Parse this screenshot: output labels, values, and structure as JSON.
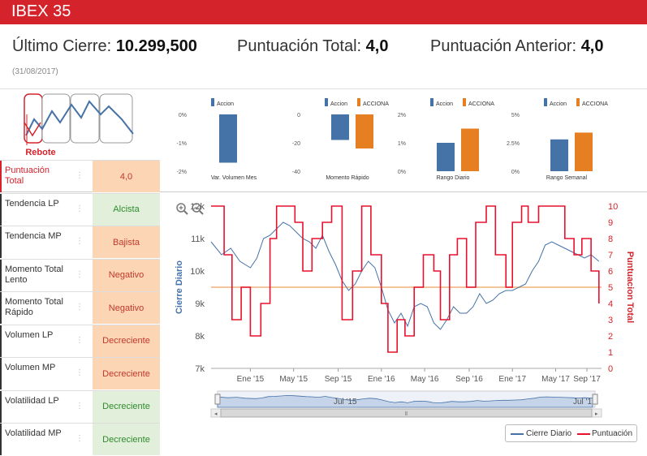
{
  "header": {
    "title": "IBEX 35"
  },
  "summary": {
    "last_close_label": "Último Cierre:",
    "last_close_value": "10.299,500",
    "total_score_label": "Puntuación Total:",
    "total_score_value": "4,0",
    "prev_score_label": "Puntuación Anterior:",
    "prev_score_value": "4,0",
    "date": "(31/08/2017)"
  },
  "pattern": {
    "label": "Rebote"
  },
  "mini_charts": [
    {
      "legend": [
        "Accion"
      ],
      "ticks": [
        "0%",
        "-1%",
        "-2%"
      ],
      "caption": "Var. Volumen Mes"
    },
    {
      "legend": [
        "Accion",
        "ACCIONA"
      ],
      "ticks": [
        "0",
        "-20",
        "-40"
      ],
      "caption": "Momento Rápido"
    },
    {
      "legend": [
        "Accion",
        "ACCIONA"
      ],
      "ticks": [
        "2%",
        "1%",
        "0%"
      ],
      "caption": "Rango Diario"
    },
    {
      "legend": [
        "Accion",
        "ACCIONA"
      ],
      "ticks": [
        "5%",
        "2.5%",
        "0%"
      ],
      "caption": "Rango Semanal"
    }
  ],
  "metrics": [
    {
      "label": "Puntuación Total",
      "value": "4,0",
      "bg": "#fcd5b5",
      "fg": "#c0392b",
      "label_color": "#d5232b",
      "border": "#d5232b"
    },
    {
      "label": "Tendencia LP",
      "value": "Alcista",
      "bg": "#e2efda",
      "fg": "#2e8b2e",
      "label_color": "#333333",
      "border": "#333333"
    },
    {
      "label": "Tendencia MP",
      "value": "Bajista",
      "bg": "#fcd5b5",
      "fg": "#c0392b",
      "label_color": "#333333",
      "border": "#333333"
    },
    {
      "label": "Momento Total Lento",
      "value": "Negativo",
      "bg": "#fcd5b5",
      "fg": "#c0392b",
      "label_color": "#333333",
      "border": "#333333"
    },
    {
      "label": "Momento Total Rápido",
      "value": "Negativo",
      "bg": "#fcd5b5",
      "fg": "#c0392b",
      "label_color": "#333333",
      "border": "#333333"
    },
    {
      "label": "Volumen LP",
      "value": "Decreciente",
      "bg": "#fcd5b5",
      "fg": "#c0392b",
      "label_color": "#333333",
      "border": "#333333"
    },
    {
      "label": "Volumen MP",
      "value": "Decreciente",
      "bg": "#fcd5b5",
      "fg": "#c0392b",
      "label_color": "#333333",
      "border": "#333333"
    },
    {
      "label": "Volatilidad LP",
      "value": "Decreciente",
      "bg": "#e2efda",
      "fg": "#2e8b2e",
      "label_color": "#333333",
      "border": "#333333"
    },
    {
      "label": "Volatilidad MP",
      "value": "Decreciente",
      "bg": "#e2efda",
      "fg": "#2e8b2e",
      "label_color": "#333333",
      "border": "#333333"
    }
  ],
  "chart_data": [
    {
      "type": "bar",
      "title": "Var. Volumen Mes",
      "categories": [
        "Var. Volumen Mes"
      ],
      "series": [
        {
          "name": "Accion",
          "values": [
            -1.7
          ]
        }
      ],
      "ylim": [
        -2,
        0
      ],
      "ytick_labels": [
        "0%",
        "-1%",
        "-2%"
      ]
    },
    {
      "type": "bar",
      "title": "Momento Rápido",
      "categories": [
        "Momento Rápido"
      ],
      "series": [
        {
          "name": "Accion",
          "values": [
            -18
          ]
        },
        {
          "name": "ACCIONA",
          "values": [
            -24
          ]
        }
      ],
      "ylim": [
        -40,
        0
      ],
      "ytick_labels": [
        "0",
        "-20",
        "-40"
      ]
    },
    {
      "type": "bar",
      "title": "Rango Diario",
      "categories": [
        "Rango Diario"
      ],
      "series": [
        {
          "name": "Accion",
          "values": [
            1.0
          ]
        },
        {
          "name": "ACCIONA",
          "values": [
            1.5
          ]
        }
      ],
      "ylim": [
        0,
        2
      ],
      "ytick_labels": [
        "2%",
        "1%",
        "0%"
      ]
    },
    {
      "type": "bar",
      "title": "Rango Semanal",
      "categories": [
        "Rango Semanal"
      ],
      "series": [
        {
          "name": "Accion",
          "values": [
            2.8
          ]
        },
        {
          "name": "ACCIONA",
          "values": [
            3.4
          ]
        }
      ],
      "ylim": [
        0,
        5
      ],
      "ytick_labels": [
        "5%",
        "2.5%",
        "0%"
      ]
    },
    {
      "type": "line",
      "title": "IBEX 35",
      "xlabel": "",
      "ylabel": "Cierre Diario",
      "ylabel_right": "Puntuacion Total",
      "x_ticks": [
        "Ene '15",
        "May '15",
        "Sep '15",
        "Ene '16",
        "May '16",
        "Sep '16",
        "Ene '17",
        "May '17",
        "Sep '17"
      ],
      "y_ticks_left": [
        "12k",
        "11k",
        "10k",
        "9k",
        "8k",
        "7k"
      ],
      "y_ticks_right": [
        "10",
        "9",
        "8",
        "7",
        "6",
        "5",
        "4",
        "3",
        "2",
        "1",
        "0"
      ],
      "ylim_left": [
        7000,
        12000
      ],
      "ylim_right": [
        0,
        10
      ],
      "reference_line": 5,
      "navigator_labels": [
        "Jul '15",
        "Jul '16"
      ],
      "series": [
        {
          "name": "Cierre Diario",
          "axis": "left",
          "x": [
            2014.7,
            2014.78,
            2014.85,
            2014.92,
            2015.0,
            2015.05,
            2015.1,
            2015.15,
            2015.2,
            2015.25,
            2015.3,
            2015.35,
            2015.4,
            2015.45,
            2015.5,
            2015.55,
            2015.6,
            2015.65,
            2015.7,
            2015.75,
            2015.8,
            2015.85,
            2015.9,
            2015.95,
            2016.0,
            2016.05,
            2016.1,
            2016.15,
            2016.2,
            2016.25,
            2016.3,
            2016.35,
            2016.4,
            2016.45,
            2016.5,
            2016.55,
            2016.6,
            2016.65,
            2016.7,
            2016.75,
            2016.8,
            2016.85,
            2016.9,
            2016.95,
            2017.0,
            2017.05,
            2017.1,
            2017.15,
            2017.2,
            2017.25,
            2017.3,
            2017.35,
            2017.4,
            2017.45,
            2017.5,
            2017.55,
            2017.6,
            2017.66
          ],
          "values": [
            10900,
            10500,
            10700,
            10300,
            10100,
            10400,
            11000,
            11100,
            11300,
            11500,
            11400,
            11200,
            11000,
            10900,
            10700,
            11100,
            10600,
            10200,
            9700,
            9400,
            9600,
            10000,
            10300,
            10100,
            9500,
            8800,
            8400,
            8700,
            8300,
            8900,
            9000,
            8900,
            8400,
            8200,
            8500,
            8900,
            8700,
            8700,
            8900,
            9300,
            9000,
            9100,
            9300,
            9400,
            9400,
            9500,
            9600,
            10000,
            10300,
            10800,
            10900,
            10800,
            10700,
            10600,
            10500,
            10400,
            10500,
            10300
          ]
        },
        {
          "name": "Puntuación",
          "axis": "right",
          "x": [
            2014.7,
            2014.8,
            2014.86,
            2014.93,
            2015.0,
            2015.08,
            2015.15,
            2015.2,
            2015.27,
            2015.34,
            2015.4,
            2015.47,
            2015.55,
            2015.62,
            2015.7,
            2015.78,
            2015.85,
            2015.92,
            2016.0,
            2016.05,
            2016.12,
            2016.18,
            2016.25,
            2016.32,
            2016.4,
            2016.45,
            2016.52,
            2016.58,
            2016.65,
            2016.72,
            2016.8,
            2016.87,
            2016.95,
            2017.0,
            2017.07,
            2017.12,
            2017.2,
            2017.28,
            2017.35,
            2017.4,
            2017.47,
            2017.53,
            2017.6,
            2017.66
          ],
          "values": [
            10,
            7,
            3,
            5,
            2,
            4,
            8,
            10,
            10,
            9,
            6,
            8,
            9,
            10,
            3,
            6,
            10,
            7,
            4,
            1,
            3,
            2,
            5,
            7,
            6,
            3,
            7,
            8,
            5,
            9,
            10,
            7,
            5,
            9,
            10,
            9,
            10,
            10,
            10,
            8,
            7,
            8,
            6,
            4
          ]
        }
      ]
    }
  ],
  "legend": {
    "series1": "Cierre Diario",
    "series2": "Puntuación"
  },
  "colors": {
    "red": "#d5232b",
    "blue": "#4572a7",
    "orange": "#e67e22",
    "score_line": "#e8112d",
    "ref_line": "#f0b27a"
  }
}
